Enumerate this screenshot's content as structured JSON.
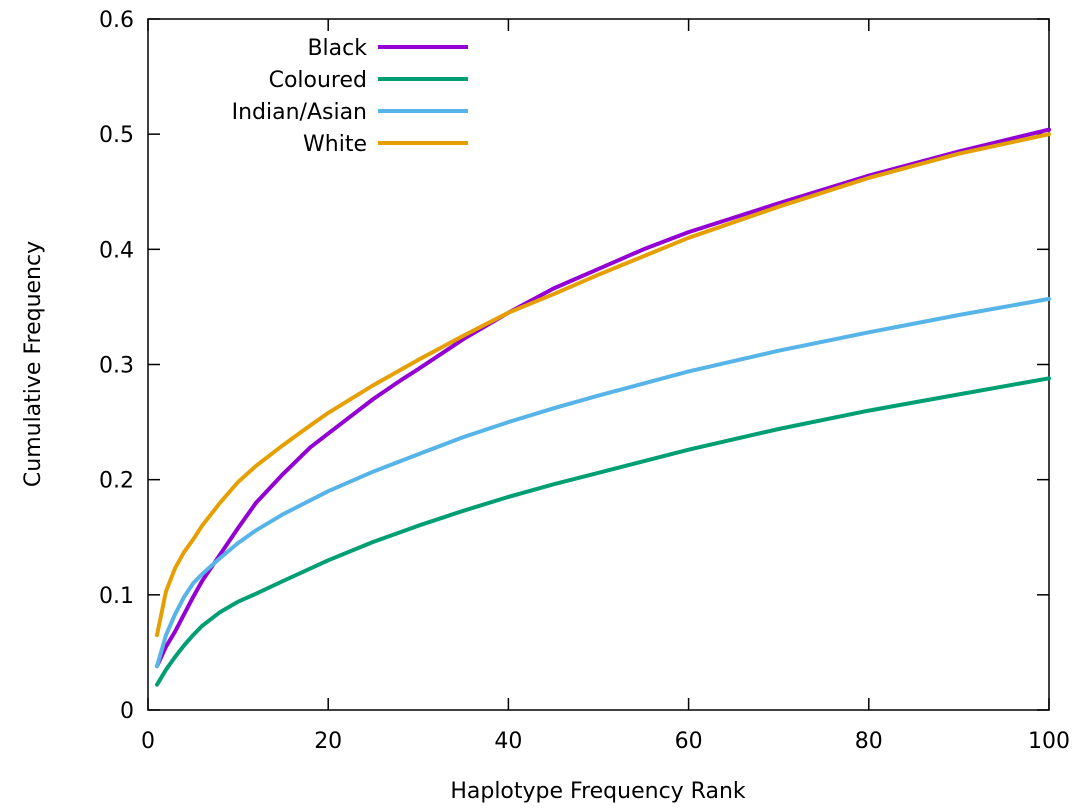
{
  "chart_data": {
    "type": "line",
    "title": "",
    "xlabel": "Haplotype Frequency Rank",
    "ylabel": "Cumulative Frequency",
    "xlim": [
      0,
      100
    ],
    "ylim": [
      0,
      0.6
    ],
    "xticks": [
      0,
      20,
      40,
      60,
      80,
      100
    ],
    "yticks": [
      0,
      0.1,
      0.2,
      0.3,
      0.4,
      0.5,
      0.6
    ],
    "xtick_labels": [
      "0",
      "20",
      "40",
      "60",
      "80",
      "100"
    ],
    "ytick_labels": [
      "0",
      "0.1",
      "0.2",
      "0.3",
      "0.4",
      "0.5",
      "0.6"
    ],
    "grid": false,
    "legend_position": "top-left",
    "series": [
      {
        "name": "Black",
        "color": "#9400d3",
        "x": [
          1,
          2,
          3,
          4,
          5,
          6,
          8,
          10,
          12,
          15,
          18,
          20,
          25,
          28,
          30,
          35,
          40,
          45,
          50,
          55,
          60,
          70,
          80,
          90,
          100
        ],
        "y": [
          0.038,
          0.055,
          0.068,
          0.083,
          0.098,
          0.112,
          0.135,
          0.158,
          0.18,
          0.205,
          0.228,
          0.24,
          0.27,
          0.286,
          0.296,
          0.322,
          0.345,
          0.366,
          0.383,
          0.4,
          0.415,
          0.44,
          0.464,
          0.485,
          0.504
        ]
      },
      {
        "name": "Coloured",
        "color": "#009e73",
        "x": [
          1,
          2,
          3,
          4,
          5,
          6,
          8,
          10,
          12,
          15,
          20,
          25,
          30,
          35,
          40,
          45,
          50,
          60,
          70,
          80,
          90,
          100
        ],
        "y": [
          0.022,
          0.035,
          0.046,
          0.056,
          0.065,
          0.073,
          0.085,
          0.094,
          0.101,
          0.112,
          0.13,
          0.146,
          0.16,
          0.173,
          0.185,
          0.196,
          0.206,
          0.226,
          0.244,
          0.26,
          0.274,
          0.288
        ]
      },
      {
        "name": "Indian/Asian",
        "color": "#56b4e9",
        "x": [
          1,
          2,
          3,
          4,
          5,
          6,
          8,
          10,
          12,
          15,
          20,
          25,
          30,
          35,
          40,
          45,
          50,
          60,
          70,
          80,
          90,
          100
        ],
        "y": [
          0.038,
          0.065,
          0.083,
          0.098,
          0.11,
          0.118,
          0.132,
          0.145,
          0.156,
          0.17,
          0.19,
          0.207,
          0.222,
          0.237,
          0.25,
          0.262,
          0.273,
          0.294,
          0.312,
          0.328,
          0.343,
          0.357
        ]
      },
      {
        "name": "White",
        "color": "#e69f00",
        "x": [
          1,
          2,
          3,
          4,
          5,
          6,
          8,
          10,
          12,
          15,
          18,
          20,
          25,
          30,
          35,
          40,
          45,
          50,
          60,
          70,
          80,
          90,
          100
        ],
        "y": [
          0.065,
          0.103,
          0.123,
          0.137,
          0.148,
          0.16,
          0.18,
          0.198,
          0.212,
          0.23,
          0.247,
          0.258,
          0.282,
          0.304,
          0.325,
          0.345,
          0.361,
          0.378,
          0.41,
          0.437,
          0.462,
          0.483,
          0.5
        ]
      }
    ]
  }
}
